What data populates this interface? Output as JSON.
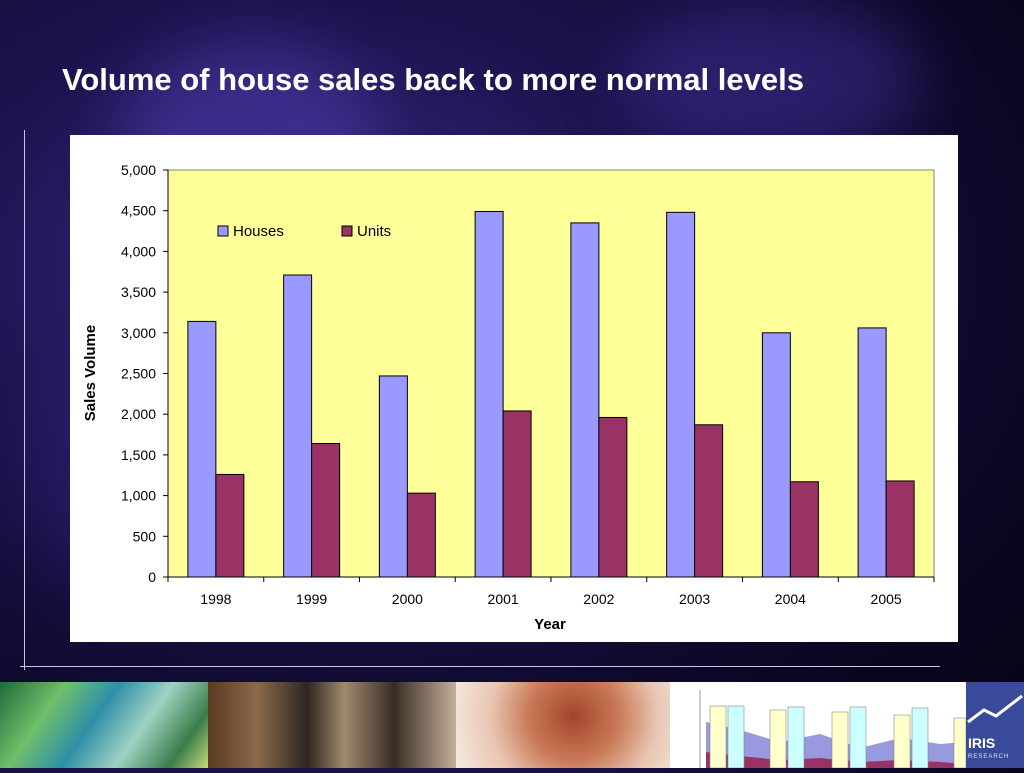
{
  "slide": {
    "title": "Volume of house sales back to more normal levels"
  },
  "colors": {
    "houses": "#9999ff",
    "units": "#993366",
    "plot_bg": "#ffff99"
  },
  "footer": {
    "logo_text": "IRIS",
    "logo_subtext": "RESEARCH"
  },
  "chart_data": {
    "type": "bar",
    "title": "",
    "xlabel": "Year",
    "ylabel": "Sales Volume",
    "categories": [
      "1998",
      "1999",
      "2000",
      "2001",
      "2002",
      "2003",
      "2004",
      "2005"
    ],
    "series": [
      {
        "name": "Houses",
        "values": [
          3140,
          3710,
          2470,
          4490,
          4350,
          4480,
          3000,
          3060
        ]
      },
      {
        "name": "Units",
        "values": [
          1260,
          1640,
          1030,
          2040,
          1960,
          1870,
          1170,
          1180
        ]
      }
    ],
    "ylim": [
      0,
      5000
    ],
    "yticks": [
      0,
      500,
      1000,
      1500,
      2000,
      2500,
      3000,
      3500,
      4000,
      4500,
      5000
    ],
    "ytick_labels": [
      "0",
      "500",
      "1,000",
      "1,500",
      "2,000",
      "2,500",
      "3,000",
      "3,500",
      "4,000",
      "4,500",
      "5,000"
    ],
    "legend_position": "top-left",
    "grid": false
  }
}
